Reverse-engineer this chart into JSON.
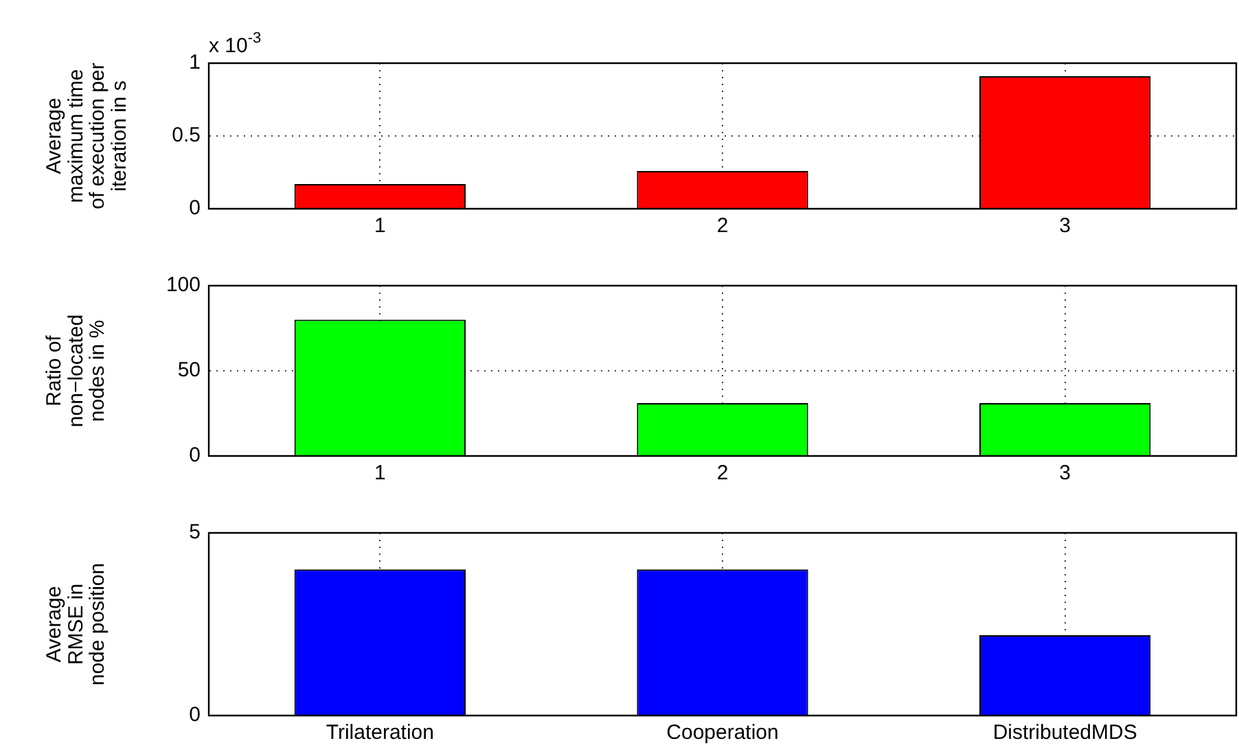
{
  "chart_data": [
    {
      "type": "bar",
      "ylabel": "Average\nmaximum time\nof execution per\niteration in s",
      "categories": [
        "1",
        "2",
        "3"
      ],
      "values": [
        0.17,
        0.26,
        0.91
      ],
      "color": "#ff0000",
      "ylim": [
        0,
        1
      ],
      "yticks": [
        0,
        0.5,
        1
      ],
      "grid": true,
      "annotations": [
        "x 10$^{-3}$"
      ]
    },
    {
      "type": "bar",
      "ylabel": "Ratio of\nnon−located\nnodes in %",
      "categories": [
        "1",
        "2",
        "3"
      ],
      "values": [
        80,
        31,
        31
      ],
      "color": "#00ff00",
      "ylim": [
        0,
        100
      ],
      "yticks": [
        0,
        50,
        100
      ],
      "grid": true
    },
    {
      "type": "bar",
      "ylabel": "Average\nRMSE in\nnode position",
      "categories": [
        "Trilateration",
        "Cooperation",
        "DistributedMDS"
      ],
      "values": [
        4.0,
        4.0,
        2.2
      ],
      "color": "#0000ff",
      "ylim": [
        0,
        5
      ],
      "yticks": [
        0,
        5
      ],
      "grid": true
    }
  ]
}
